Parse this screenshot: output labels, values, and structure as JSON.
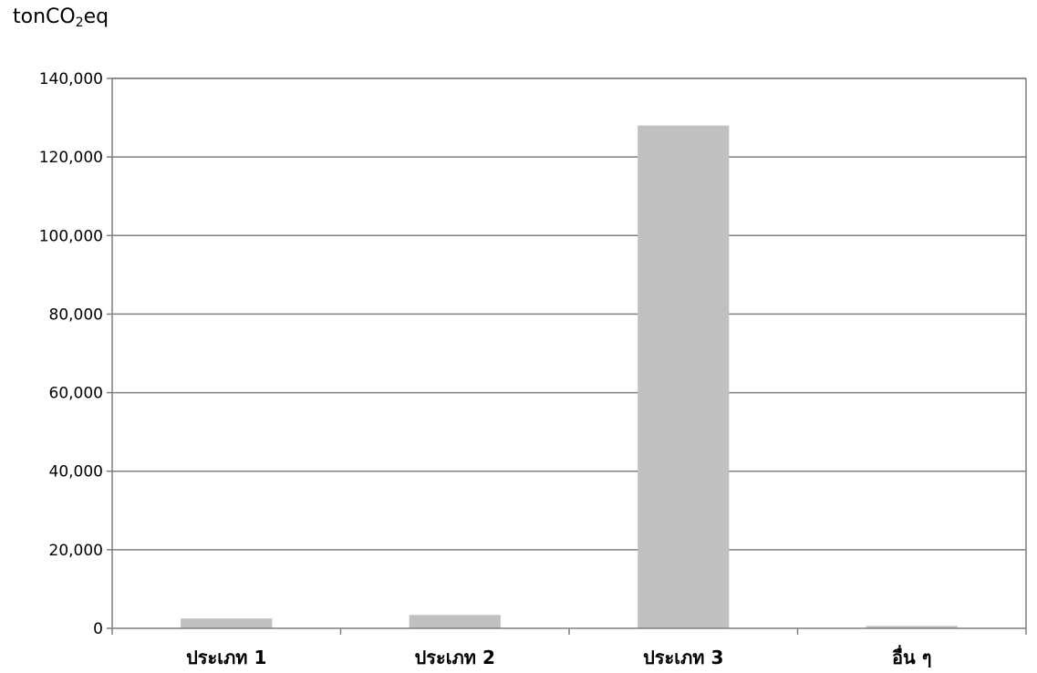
{
  "chart_data": {
    "type": "bar",
    "ylabel": {
      "main": "tonCO",
      "subscript": "2",
      "suffix": "eq"
    },
    "categories": [
      "ประเภท 1",
      "ประเภท 2",
      "ประเภท 3",
      "อื่น ๆ"
    ],
    "values": [
      2500,
      3400,
      128000,
      600
    ],
    "ylim": [
      0,
      140000
    ],
    "yticks": [
      0,
      20000,
      40000,
      60000,
      80000,
      100000,
      120000,
      140000
    ],
    "ytick_labels": [
      "0",
      "20,000",
      "40,000",
      "60,000",
      "80,000",
      "100,000",
      "120,000",
      "140,000"
    ],
    "grid": true,
    "legend": "none",
    "colors": {
      "bar": "#c0c0c0",
      "grid": "#7f7f7f",
      "axis": "#7f7f7f"
    }
  }
}
